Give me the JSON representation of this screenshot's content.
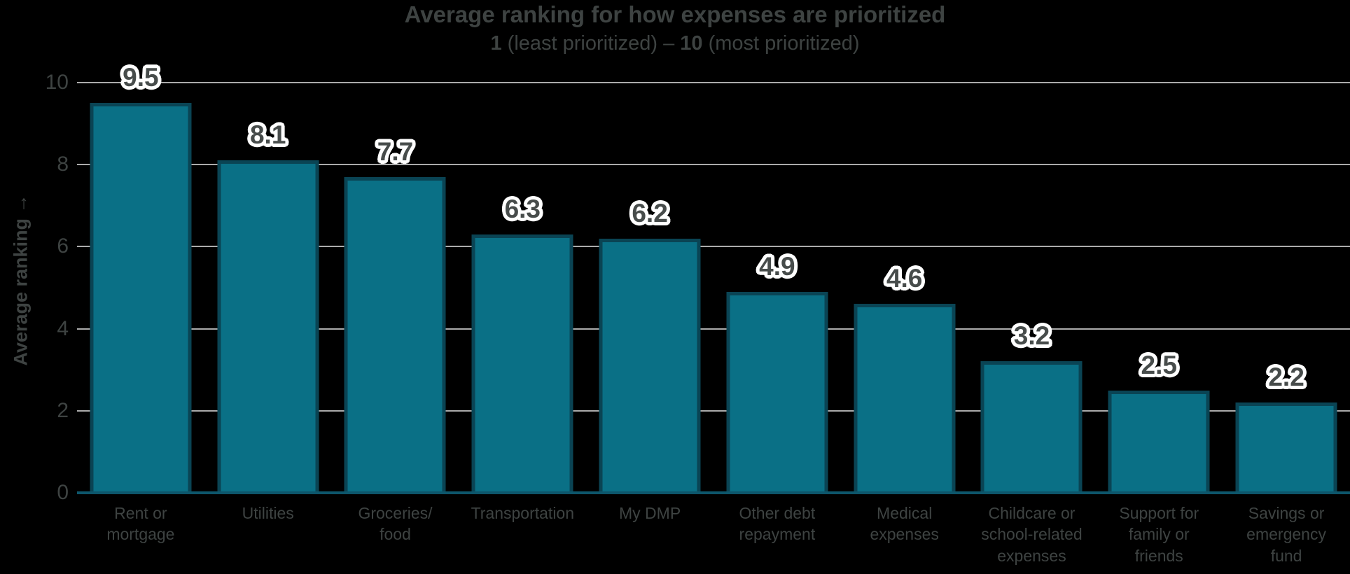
{
  "chart_data": {
    "type": "bar",
    "title": "Average ranking for how expenses are prioritized",
    "subtitle_parts": {
      "bold1": "1",
      "mid": " (least prioritized) – ",
      "bold2": "10",
      "end": " (most prioritized)"
    },
    "ylabel": "Average ranking →",
    "xlabel": "",
    "ylim": [
      0,
      10
    ],
    "yticks": [
      0,
      2,
      4,
      6,
      8,
      10
    ],
    "grid": "horizontal gridlines on, behind bars",
    "legend": "none",
    "categories": [
      "Rent or\nmortgage",
      "Utilities",
      "Groceries/\nfood",
      "Transportation",
      "My DMP",
      "Other debt\nrepayment",
      "Medical\nexpenses",
      "Childcare or\nschool-related\nexpenses",
      "Support for\nfamily or\nfriends",
      "Savings or\nemergency\nfund"
    ],
    "values": [
      9.5,
      8.1,
      7.7,
      6.3,
      6.2,
      4.9,
      4.6,
      3.2,
      2.5,
      2.2
    ],
    "value_labels": [
      "9.5",
      "8.1",
      "7.7",
      "6.3",
      "6.2",
      "4.9",
      "4.6",
      "3.2",
      "2.5",
      "2.2"
    ],
    "colors": {
      "background": "#000000",
      "bar_fill": "#0A7086",
      "bar_border": "#0A4454",
      "gridline": "#ABABAB",
      "axis_line": "#0D566B",
      "text": "#3E4342",
      "value_text": "#474C4B",
      "value_outline": "#FFFFFF"
    }
  }
}
